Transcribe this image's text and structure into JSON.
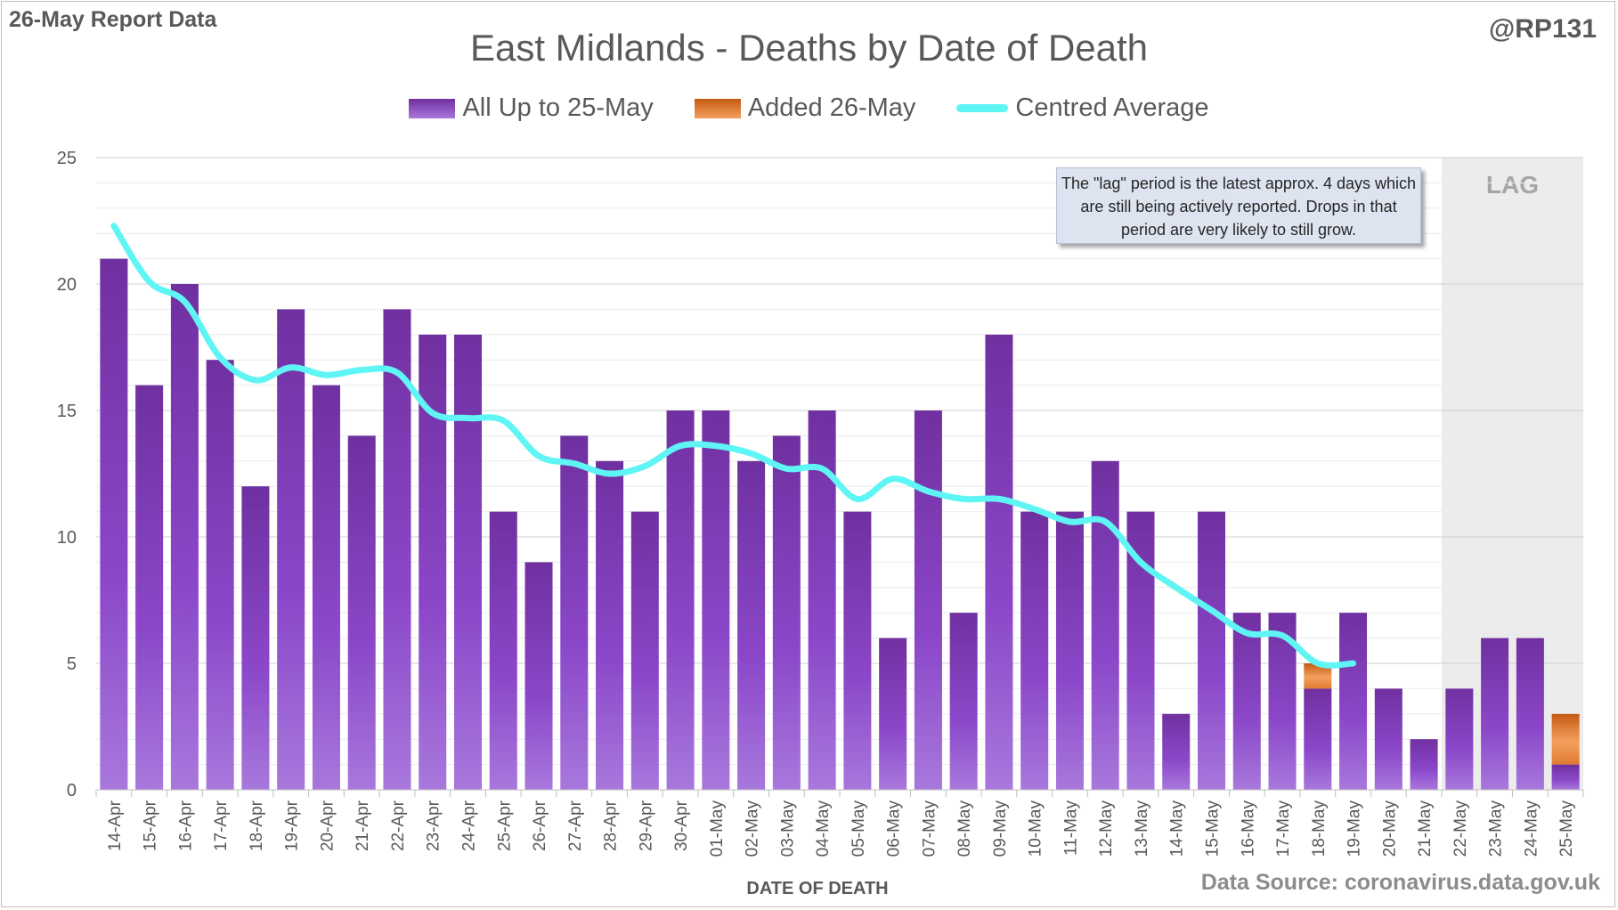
{
  "header": {
    "report_label": "26-May Report Data",
    "handle": "@RP131"
  },
  "footer": {
    "source": "Data Source: coronavirus.data.gov.uk"
  },
  "note": "The \"lag\" period is the latest approx. 4 days which are still being actively reported.  Drops in that period are very likely to still grow.",
  "colors": {
    "bar_base": "#7030a0",
    "bar_light": "#a070d4",
    "added": "#e07a30",
    "average": "#5ff5f5",
    "lag_shade": "#ececec",
    "grid": "#d9d9d9",
    "text": "#595959"
  },
  "chart_data": {
    "type": "bar",
    "title": "East Midlands - Deaths by Date of Death",
    "xlabel": "DATE OF DEATH",
    "ylabel": "",
    "ylim": [
      0,
      25
    ],
    "yticks": [
      0,
      5,
      10,
      15,
      20,
      25
    ],
    "grid": true,
    "legend_position": "top",
    "categories": [
      "14-Apr",
      "15-Apr",
      "16-Apr",
      "17-Apr",
      "18-Apr",
      "19-Apr",
      "20-Apr",
      "21-Apr",
      "22-Apr",
      "23-Apr",
      "24-Apr",
      "25-Apr",
      "26-Apr",
      "27-Apr",
      "28-Apr",
      "29-Apr",
      "30-Apr",
      "01-May",
      "02-May",
      "03-May",
      "04-May",
      "05-May",
      "06-May",
      "07-May",
      "08-May",
      "09-May",
      "10-May",
      "11-May",
      "12-May",
      "13-May",
      "14-May",
      "15-May",
      "16-May",
      "17-May",
      "18-May",
      "19-May",
      "20-May",
      "21-May",
      "22-May",
      "23-May",
      "24-May",
      "25-May"
    ],
    "series": [
      {
        "name": "All Up to 25-May",
        "values": [
          21,
          16,
          20,
          17,
          12,
          19,
          16,
          14,
          19,
          18,
          18,
          11,
          9,
          14,
          13,
          11,
          15,
          15,
          13,
          14,
          15,
          11,
          6,
          15,
          7,
          18,
          11,
          11,
          13,
          11,
          3,
          11,
          7,
          7,
          4,
          7,
          4,
          2,
          4,
          6,
          6,
          1
        ]
      },
      {
        "name": "Added 26-May",
        "values": [
          0,
          0,
          0,
          0,
          0,
          0,
          0,
          0,
          0,
          0,
          0,
          0,
          0,
          0,
          0,
          0,
          0,
          0,
          0,
          0,
          0,
          0,
          0,
          0,
          0,
          0,
          0,
          0,
          0,
          0,
          0,
          0,
          0,
          0,
          1,
          0,
          0,
          0,
          0,
          0,
          0,
          2
        ]
      },
      {
        "name": "Centred Average",
        "values": [
          22.3,
          20.1,
          19.3,
          17.1,
          16.2,
          16.7,
          16.4,
          16.6,
          16.5,
          14.9,
          14.7,
          14.6,
          13.2,
          12.9,
          12.5,
          12.8,
          13.6,
          13.6,
          13.3,
          12.7,
          12.7,
          11.5,
          12.3,
          11.8,
          11.5,
          11.5,
          11.1,
          10.6,
          10.6,
          9.0,
          8.0,
          7.1,
          6.2,
          6.1,
          5.0,
          5.0,
          null,
          null,
          null,
          null,
          null,
          null
        ]
      }
    ],
    "lag_label": "LAG",
    "lag_categories": [
      "22-May",
      "23-May",
      "24-May",
      "25-May"
    ]
  }
}
